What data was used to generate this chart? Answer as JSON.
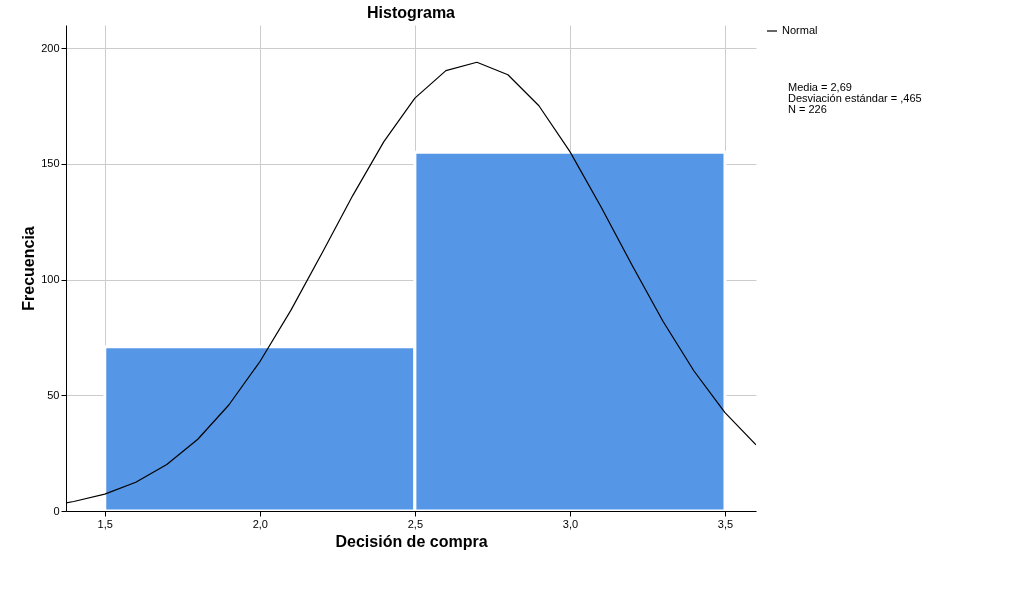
{
  "chart_data": {
    "type": "histogram",
    "title": "Histograma",
    "xlabel": "Decisión de compra",
    "ylabel": "Frecuencia",
    "bins": [
      1.5,
      2.5,
      3.5
    ],
    "series": [
      {
        "color": "#5596e6",
        "values": [
          71,
          155
        ]
      },
      {
        "type": "line",
        "name": "Normal",
        "color": "#000000",
        "x": [
          1.375,
          1.4,
          1.5,
          1.6,
          1.7,
          1.8,
          1.9,
          2.0,
          2.1,
          2.2,
          2.3,
          2.4,
          2.5,
          2.6,
          2.7,
          2.8,
          2.9,
          3.0,
          3.1,
          3.2,
          3.3,
          3.4,
          3.5,
          3.6
        ],
        "values": [
          3.5,
          4.1,
          7.3,
          12.4,
          20.1,
          31.0,
          45.8,
          64.5,
          86.7,
          111.3,
          136.4,
          159.6,
          178.4,
          190.3,
          193.9,
          188.5,
          175.1,
          155.3,
          131.5,
          106.3,
          82.0,
          60.5,
          42.5,
          28.6
        ]
      }
    ],
    "xlim": [
      1.375,
      3.6
    ],
    "ylim": [
      0,
      210
    ],
    "xticks": [
      {
        "value": 1.5,
        "label": "1,5"
      },
      {
        "value": 2.0,
        "label": "2,0"
      },
      {
        "value": 2.5,
        "label": "2,5"
      },
      {
        "value": 3.0,
        "label": "3,0"
      },
      {
        "value": 3.5,
        "label": "3,5"
      }
    ],
    "yticks": [
      0,
      50,
      100,
      150,
      200
    ],
    "grid": true,
    "legend": "top right",
    "marker": "none",
    "line_style": "solid",
    "annotations": [
      "Media = 2,69",
      "Desviación estándar = ,465",
      "N = 226"
    ]
  }
}
